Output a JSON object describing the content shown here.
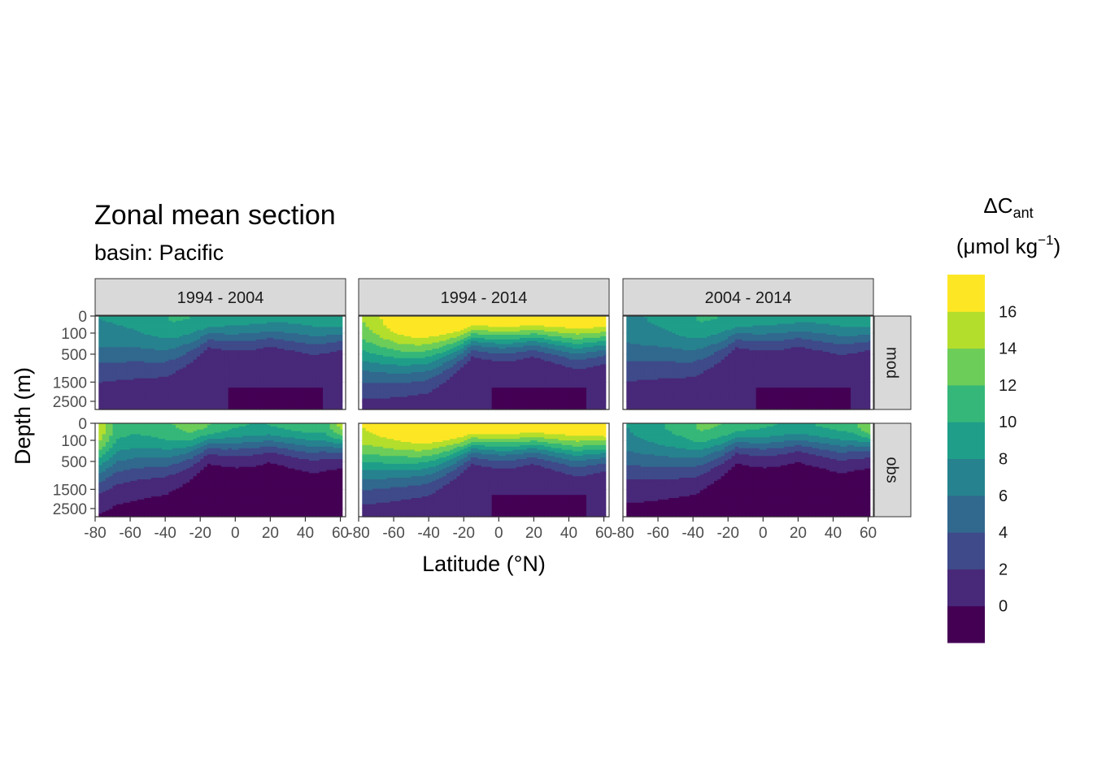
{
  "chart_data": {
    "type": "heatmap",
    "title": "Zonal mean section",
    "subtitle": "basin: Pacific",
    "xlabel": "Latitude (°N)",
    "ylabel": "Depth (m)",
    "legend": {
      "title_main": "ΔC",
      "title_sub": "ant",
      "unit_open": "(μmol kg",
      "unit_sup": "−1",
      "unit_close": ")",
      "breaks": [
        -2,
        0,
        2,
        4,
        6,
        8,
        10,
        12,
        14,
        16,
        18
      ],
      "tick_labels": [
        "0",
        "2",
        "4",
        "6",
        "8",
        "10",
        "12",
        "14",
        "16"
      ],
      "colors": [
        "#440154",
        "#482878",
        "#3E4A89",
        "#31688E",
        "#26828E",
        "#1F9E89",
        "#35B779",
        "#6DCD59",
        "#B4DE2C",
        "#FDE725"
      ],
      "position": "right"
    },
    "x_ticks": [
      "-80",
      "-60",
      "-40",
      "-20",
      "0",
      "20",
      "40",
      "60"
    ],
    "x_tick_values": [
      -80,
      -60,
      -40,
      -20,
      0,
      20,
      40,
      60
    ],
    "xlim": [
      -80,
      63
    ],
    "y_ticks": [
      "0",
      "100",
      "500",
      "1500",
      "2500"
    ],
    "y_tick_values": [
      0,
      100,
      500,
      1500,
      2500
    ],
    "y_scale": "reverse-sqrt",
    "ylim": [
      3000,
      0
    ],
    "latitude_coverage": [
      -78,
      61
    ],
    "columns": [
      "1994 - 2004",
      "1994 - 2014",
      "2004 - 2014"
    ],
    "rows": [
      "mod",
      "obs"
    ],
    "grid": "light",
    "panels": [
      {
        "column": "1994 - 2004",
        "row": "mod",
        "surface_value": 8.8,
        "lat_pattern": [
          8,
          8.2,
          8.6,
          9.5,
          10.2,
          10,
          9.5,
          9,
          8.8,
          8.6,
          8.5,
          8.7,
          9.2,
          9.3
        ],
        "shallow_depth": 350,
        "tropics_depth": 220,
        "south_depth": 800,
        "deep_min": 0
      },
      {
        "column": "1994 - 2014",
        "row": "mod",
        "surface_value": 17.0,
        "lat_pattern": [
          14,
          16,
          18,
          19,
          19,
          19,
          18,
          18,
          18,
          18,
          18,
          18,
          18,
          18
        ],
        "shallow_depth": 450,
        "tropics_depth": 260,
        "south_depth": 900,
        "deep_min": 0
      },
      {
        "column": "2004 - 2014",
        "row": "mod",
        "surface_value": 8.5,
        "lat_pattern": [
          7.5,
          8,
          8.5,
          9.5,
          10.2,
          10,
          9.5,
          9,
          8.8,
          8.6,
          8.5,
          8.7,
          9.2,
          9.5
        ],
        "shallow_depth": 350,
        "tropics_depth": 220,
        "south_depth": 800,
        "deep_min": 0
      },
      {
        "column": "1994 - 2004",
        "row": "obs",
        "surface_value": 11.0,
        "lat_pattern": [
          16,
          11,
          10.5,
          11,
          12,
          13,
          12,
          10.5,
          10,
          10,
          10.5,
          11,
          11,
          15
        ],
        "shallow_depth": 350,
        "tropics_depth": 220,
        "south_depth": 700,
        "deep_min": -1
      },
      {
        "column": "1994 - 2014",
        "row": "obs",
        "surface_value": 17.5,
        "lat_pattern": [
          16,
          17,
          18,
          19,
          19,
          19,
          18.5,
          18,
          18,
          18,
          18,
          18,
          18,
          19
        ],
        "shallow_depth": 450,
        "tropics_depth": 260,
        "south_depth": 800,
        "deep_min": 0
      },
      {
        "column": "2004 - 2014",
        "row": "obs",
        "surface_value": 10.0,
        "lat_pattern": [
          8,
          9,
          10,
          11,
          12.5,
          12,
          11,
          10.5,
          10,
          9.5,
          10,
          10.5,
          11,
          14
        ],
        "shallow_depth": 350,
        "tropics_depth": 220,
        "south_depth": 700,
        "deep_min": -1
      }
    ]
  }
}
